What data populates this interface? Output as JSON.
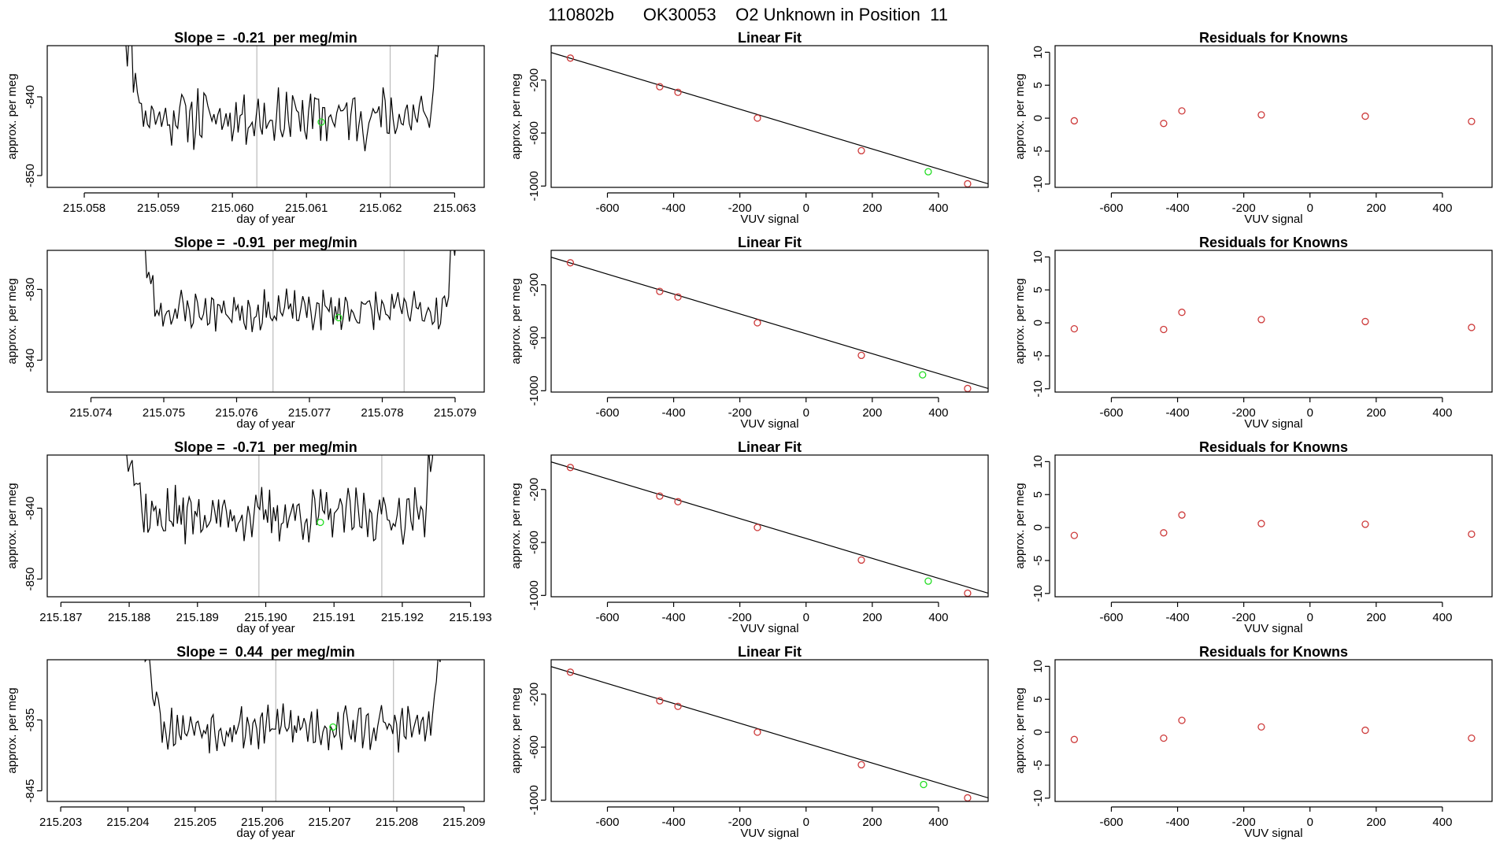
{
  "figure_title": "110802b      OK30053    O2 Unknown in Position  11",
  "colors": {
    "known": "#cd3a3a",
    "unknown": "#22dd22",
    "line": "#000000",
    "vline": "#bbbbbb"
  },
  "chart_data": [
    {
      "type": "line",
      "row": 1,
      "title": "Slope =  -0.21  per meg/min",
      "xlabel": "day of year",
      "ylabel": "approx. per meg",
      "xlim": [
        215.0575,
        215.0634
      ],
      "ylim": [
        -851.5,
        -833.5
      ],
      "xticks": [
        215.058,
        215.059,
        215.06,
        215.061,
        215.062,
        215.063
      ],
      "xtick_labels": [
        "215.058",
        "215.059",
        "215.060",
        "215.061",
        "215.062",
        "215.063"
      ],
      "yticks": [
        -840,
        -850
      ],
      "ytick_labels": [
        "-840",
        "-850"
      ],
      "x_start": 215.0585,
      "x_end": 215.06285,
      "n_points": 160,
      "base": -842.5,
      "amp": 2.6,
      "seed": 11,
      "vlines": [
        215.06033,
        215.06213
      ],
      "unknown_point": {
        "x": 215.0612,
        "y": -843.2
      }
    },
    {
      "type": "scatter",
      "row": 1,
      "title": "Linear Fit",
      "xlabel": "VUV signal",
      "ylabel": "approx. per meg",
      "xlim": [
        -770,
        550
      ],
      "ylim": [
        -1010,
        60
      ],
      "xticks": [
        -600,
        -400,
        -200,
        0,
        200,
        400
      ],
      "xtick_labels": [
        "-600",
        "-400",
        "-200",
        "0",
        "200",
        "400"
      ],
      "yticks": [
        -200,
        -600,
        -1000
      ],
      "ytick_labels": [
        "-200",
        "-600",
        "-1000"
      ],
      "fit": {
        "x": [
          -770,
          550
        ],
        "y": [
          8,
          -983
        ]
      },
      "knowns": [
        {
          "x": -712,
          "y": -34
        },
        {
          "x": -442,
          "y": -250
        },
        {
          "x": -387,
          "y": -292
        },
        {
          "x": -147,
          "y": -487
        },
        {
          "x": 167,
          "y": -733
        },
        {
          "x": 488,
          "y": -983
        }
      ],
      "unknown_point": {
        "x": 369,
        "y": -892
      }
    },
    {
      "type": "scatter",
      "row": 1,
      "title": "Residuals for Knowns",
      "xlabel": "VUV signal",
      "ylabel": "approx. per meg",
      "xlim": [
        -770,
        550
      ],
      "ylim": [
        -10.5,
        11
      ],
      "xticks": [
        -600,
        -400,
        -200,
        0,
        200,
        400
      ],
      "xtick_labels": [
        "-600",
        "-400",
        "-200",
        "0",
        "200",
        "400"
      ],
      "yticks": [
        10,
        5,
        0,
        -5,
        -10
      ],
      "ytick_labels": [
        "10",
        "5",
        "0",
        "-5",
        "-10"
      ],
      "knowns": [
        {
          "x": -712,
          "y": -0.4
        },
        {
          "x": -442,
          "y": -0.8
        },
        {
          "x": -387,
          "y": 1.1
        },
        {
          "x": -147,
          "y": 0.5
        },
        {
          "x": 167,
          "y": 0.3
        },
        {
          "x": 488,
          "y": -0.5
        }
      ]
    },
    {
      "type": "line",
      "row": 2,
      "title": "Slope =  -0.91  per meg/min",
      "xlabel": "day of year",
      "ylabel": "approx. per meg",
      "xlim": [
        215.0734,
        215.0794
      ],
      "ylim": [
        -844.5,
        -824.5
      ],
      "xticks": [
        215.074,
        215.075,
        215.076,
        215.077,
        215.078,
        215.079
      ],
      "xtick_labels": [
        "215.074",
        "215.075",
        "215.076",
        "215.077",
        "215.078",
        "215.079"
      ],
      "yticks": [
        -830,
        -840
      ],
      "ytick_labels": [
        "-830",
        "-840"
      ],
      "x_start": 215.0746,
      "x_end": 215.07905,
      "n_points": 160,
      "base": -833.0,
      "amp": 2.0,
      "seed": 23,
      "vlines": [
        215.0765,
        215.0783
      ],
      "unknown_point": {
        "x": 215.0774,
        "y": -834.0
      }
    },
    {
      "type": "scatter",
      "row": 2,
      "title": "Linear Fit",
      "xlabel": "VUV signal",
      "ylabel": "approx. per meg",
      "xlim": [
        -770,
        550
      ],
      "ylim": [
        -1010,
        60
      ],
      "xticks": [
        -600,
        -400,
        -200,
        0,
        200,
        400
      ],
      "xtick_labels": [
        "-600",
        "-400",
        "-200",
        "0",
        "200",
        "400"
      ],
      "yticks": [
        -200,
        -600,
        -1000
      ],
      "ytick_labels": [
        "-200",
        "-600",
        "-1000"
      ],
      "fit": {
        "x": [
          -770,
          550
        ],
        "y": [
          8,
          -983
        ]
      },
      "knowns": [
        {
          "x": -712,
          "y": -34
        },
        {
          "x": -442,
          "y": -250
        },
        {
          "x": -387,
          "y": -292
        },
        {
          "x": -147,
          "y": -487
        },
        {
          "x": 167,
          "y": -733
        },
        {
          "x": 488,
          "y": -983
        }
      ],
      "unknown_point": {
        "x": 352,
        "y": -880
      }
    },
    {
      "type": "scatter",
      "row": 2,
      "title": "Residuals for Knowns",
      "xlabel": "VUV signal",
      "ylabel": "approx. per meg",
      "xlim": [
        -770,
        550
      ],
      "ylim": [
        -10.5,
        11
      ],
      "xticks": [
        -600,
        -400,
        -200,
        0,
        200,
        400
      ],
      "xtick_labels": [
        "-600",
        "-400",
        "-200",
        "0",
        "200",
        "400"
      ],
      "yticks": [
        10,
        5,
        0,
        -5,
        -10
      ],
      "ytick_labels": [
        "10",
        "5",
        "0",
        "-5",
        "-10"
      ],
      "knowns": [
        {
          "x": -712,
          "y": -0.9
        },
        {
          "x": -442,
          "y": -1.0
        },
        {
          "x": -387,
          "y": 1.6
        },
        {
          "x": -147,
          "y": 0.5
        },
        {
          "x": 167,
          "y": 0.2
        },
        {
          "x": 488,
          "y": -0.7
        }
      ]
    },
    {
      "type": "line",
      "row": 3,
      "title": "Slope =  -0.71  per meg/min",
      "xlabel": "day of year",
      "ylabel": "approx. per meg",
      "xlim": [
        215.1868,
        215.1932
      ],
      "ylim": [
        -852.5,
        -832.5
      ],
      "xticks": [
        215.187,
        215.188,
        215.189,
        215.19,
        215.191,
        215.192,
        215.193
      ],
      "xtick_labels": [
        "215.187",
        "215.188",
        "215.189",
        "215.190",
        "215.191",
        "215.192",
        "215.193"
      ],
      "yticks": [
        -840,
        -850
      ],
      "ytick_labels": [
        "-840",
        "-850"
      ],
      "x_start": 215.1879,
      "x_end": 215.1925,
      "n_points": 160,
      "base": -841.0,
      "amp": 2.6,
      "seed": 37,
      "vlines": [
        215.1899,
        215.1917
      ],
      "unknown_point": {
        "x": 215.1908,
        "y": -842.0
      }
    },
    {
      "type": "scatter",
      "row": 3,
      "title": "Linear Fit",
      "xlabel": "VUV signal",
      "ylabel": "approx. per meg",
      "xlim": [
        -770,
        550
      ],
      "ylim": [
        -1010,
        60
      ],
      "xticks": [
        -600,
        -400,
        -200,
        0,
        200,
        400
      ],
      "xtick_labels": [
        "-600",
        "-400",
        "-200",
        "0",
        "200",
        "400"
      ],
      "yticks": [
        -200,
        -600,
        -1000
      ],
      "ytick_labels": [
        "-200",
        "-600",
        "-1000"
      ],
      "fit": {
        "x": [
          -770,
          550
        ],
        "y": [
          8,
          -983
        ]
      },
      "knowns": [
        {
          "x": -712,
          "y": -34
        },
        {
          "x": -442,
          "y": -250
        },
        {
          "x": -387,
          "y": -292
        },
        {
          "x": -147,
          "y": -487
        },
        {
          "x": 167,
          "y": -733
        },
        {
          "x": 488,
          "y": -983
        }
      ],
      "unknown_point": {
        "x": 369,
        "y": -892
      }
    },
    {
      "type": "scatter",
      "row": 3,
      "title": "Residuals for Knowns",
      "xlabel": "VUV signal",
      "ylabel": "approx. per meg",
      "xlim": [
        -770,
        550
      ],
      "ylim": [
        -10.5,
        11
      ],
      "xticks": [
        -600,
        -400,
        -200,
        0,
        200,
        400
      ],
      "xtick_labels": [
        "-600",
        "-400",
        "-200",
        "0",
        "200",
        "400"
      ],
      "yticks": [
        10,
        5,
        0,
        -5,
        -10
      ],
      "ytick_labels": [
        "10",
        "5",
        "0",
        "-5",
        "-10"
      ],
      "knowns": [
        {
          "x": -712,
          "y": -1.2
        },
        {
          "x": -442,
          "y": -0.8
        },
        {
          "x": -387,
          "y": 1.9
        },
        {
          "x": -147,
          "y": 0.6
        },
        {
          "x": 167,
          "y": 0.5
        },
        {
          "x": 488,
          "y": -1.0
        }
      ]
    },
    {
      "type": "line",
      "row": 4,
      "title": "Slope =  0.44  per meg/min",
      "xlabel": "day of year",
      "ylabel": "approx. per meg",
      "xlim": [
        215.2028,
        215.2093
      ],
      "ylim": [
        -846.5,
        -826.5
      ],
      "xticks": [
        215.203,
        215.204,
        215.205,
        215.206,
        215.207,
        215.208,
        215.209
      ],
      "xtick_labels": [
        "215.203",
        "215.204",
        "215.205",
        "215.206",
        "215.207",
        "215.208",
        "215.209"
      ],
      "yticks": [
        -835,
        -845
      ],
      "ytick_labels": [
        "-835",
        "-845"
      ],
      "x_start": 215.2042,
      "x_end": 215.2087,
      "n_points": 160,
      "base": -836.0,
      "amp": 2.2,
      "seed": 53,
      "vlines": [
        215.2062,
        215.20795
      ],
      "unknown_point": {
        "x": 215.20705,
        "y": -836.0
      }
    },
    {
      "type": "scatter",
      "row": 4,
      "title": "Linear Fit",
      "xlabel": "VUV signal",
      "ylabel": "approx. per meg",
      "xlim": [
        -770,
        550
      ],
      "ylim": [
        -1010,
        60
      ],
      "xticks": [
        -600,
        -400,
        -200,
        0,
        200,
        400
      ],
      "xtick_labels": [
        "-600",
        "-400",
        "-200",
        "0",
        "200",
        "400"
      ],
      "yticks": [
        -200,
        -600,
        -1000
      ],
      "ytick_labels": [
        "-200",
        "-600",
        "-1000"
      ],
      "fit": {
        "x": [
          -770,
          550
        ],
        "y": [
          8,
          -983
        ]
      },
      "knowns": [
        {
          "x": -712,
          "y": -34
        },
        {
          "x": -442,
          "y": -250
        },
        {
          "x": -387,
          "y": -292
        },
        {
          "x": -147,
          "y": -487
        },
        {
          "x": 167,
          "y": -733
        },
        {
          "x": 488,
          "y": -983
        }
      ],
      "unknown_point": {
        "x": 355,
        "y": -882
      }
    },
    {
      "type": "scatter",
      "row": 4,
      "title": "Residuals for Knowns",
      "xlabel": "VUV signal",
      "ylabel": "approx. per meg",
      "xlim": [
        -770,
        550
      ],
      "ylim": [
        -10.5,
        11
      ],
      "xticks": [
        -600,
        -400,
        -200,
        0,
        200,
        400
      ],
      "xtick_labels": [
        "-600",
        "-400",
        "-200",
        "0",
        "200",
        "400"
      ],
      "yticks": [
        10,
        5,
        0,
        -5,
        -10
      ],
      "ytick_labels": [
        "10",
        "5",
        "0",
        "-5",
        "-10"
      ],
      "knowns": [
        {
          "x": -712,
          "y": -1.1
        },
        {
          "x": -442,
          "y": -0.9
        },
        {
          "x": -387,
          "y": 1.8
        },
        {
          "x": -147,
          "y": 0.8
        },
        {
          "x": 167,
          "y": 0.3
        },
        {
          "x": 488,
          "y": -0.9
        }
      ]
    }
  ]
}
